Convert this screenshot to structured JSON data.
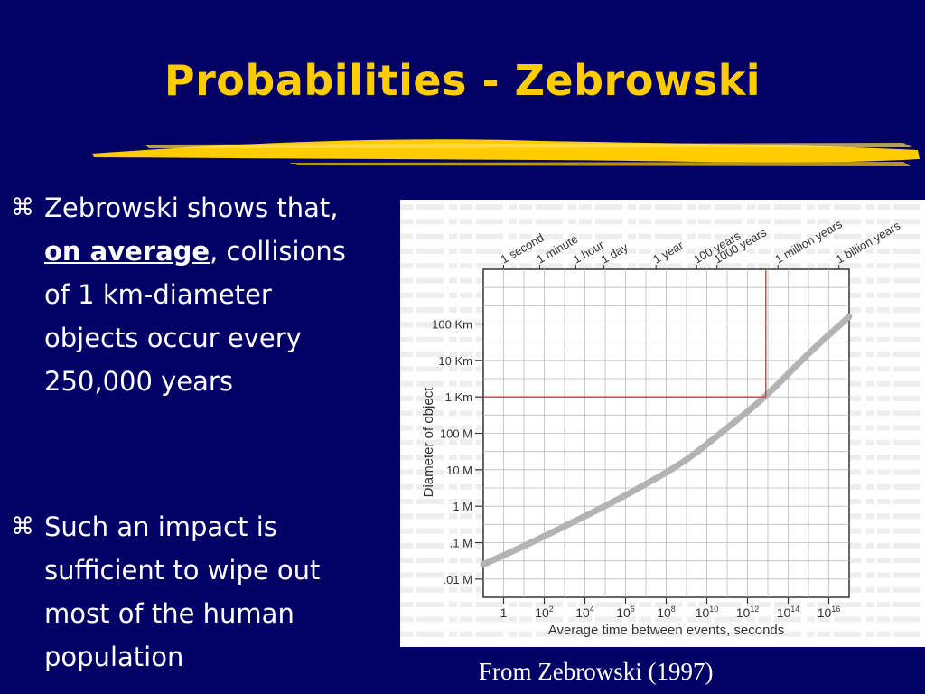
{
  "slide": {
    "title": "Probabilities - Zebrowski",
    "bullet_icon": "command-key-icon",
    "bullet1": {
      "before": "Zebrowski shows that, ",
      "emphasis": "on average",
      "after": ", collisions of 1 km-diameter objects occur every 250,000 years"
    },
    "bullet2": {
      "text": "Such an impact is sufficient to wipe out most of the human population"
    },
    "caption": "From Zebrowski (1997)",
    "colors": {
      "background": "#000066",
      "title": "#FFCC00",
      "text": "#FFFFFF",
      "curve": "#B3B3B3",
      "marker": "#E03030"
    }
  },
  "chart_data": {
    "type": "line",
    "xlabel": "Average time between events, seconds",
    "ylabel": "Diameter of object",
    "x_ticks": [
      {
        "base": "1",
        "exp": ""
      },
      {
        "base": "10",
        "exp": "2"
      },
      {
        "base": "10",
        "exp": "4"
      },
      {
        "base": "10",
        "exp": "6"
      },
      {
        "base": "10",
        "exp": "8"
      },
      {
        "base": "10",
        "exp": "10"
      },
      {
        "base": "10",
        "exp": "12"
      },
      {
        "base": "10",
        "exp": "14"
      },
      {
        "base": "10",
        "exp": "16"
      }
    ],
    "y_ticks": [
      ".01 M",
      ".1 M",
      "1 M",
      "10 M",
      "100 M",
      "1 Km",
      "10 Km",
      "100 Km"
    ],
    "top_labels": [
      "1 second",
      "1 minute",
      "1 hour",
      "1 day",
      "1 year",
      "100 years",
      "1000 years",
      "1 million years",
      "1 billion years"
    ],
    "x_log_range": [
      -1,
      17
    ],
    "y_log_range_meters": [
      -2.5,
      6.5
    ],
    "grid": true,
    "log_scale": true,
    "series": [
      {
        "x_log_seconds": [
          -1,
          1,
          3,
          5,
          7,
          9,
          11,
          12.9,
          15,
          17
        ],
        "y_log_meters": [
          -1.6,
          -1.1,
          -0.55,
          0.0,
          0.6,
          1.25,
          2.15,
          3.0,
          4.2,
          5.2
        ]
      }
    ],
    "annotation": {
      "x_log_seconds": 12.9,
      "y_log_meters": 3,
      "note": "1 km objects ~ every 250,000 years"
    }
  }
}
